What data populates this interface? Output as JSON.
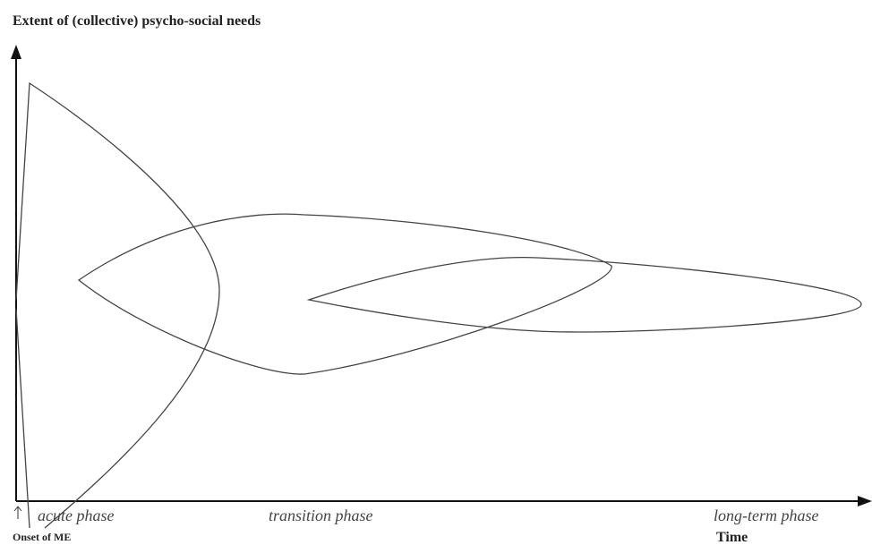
{
  "title": "Extent of (collective) psycho-social needs",
  "phases": [
    "acute phase",
    "transition phase",
    "long-term phase"
  ],
  "onset_label": "Onset of ME",
  "x_axis_label": "Time"
}
